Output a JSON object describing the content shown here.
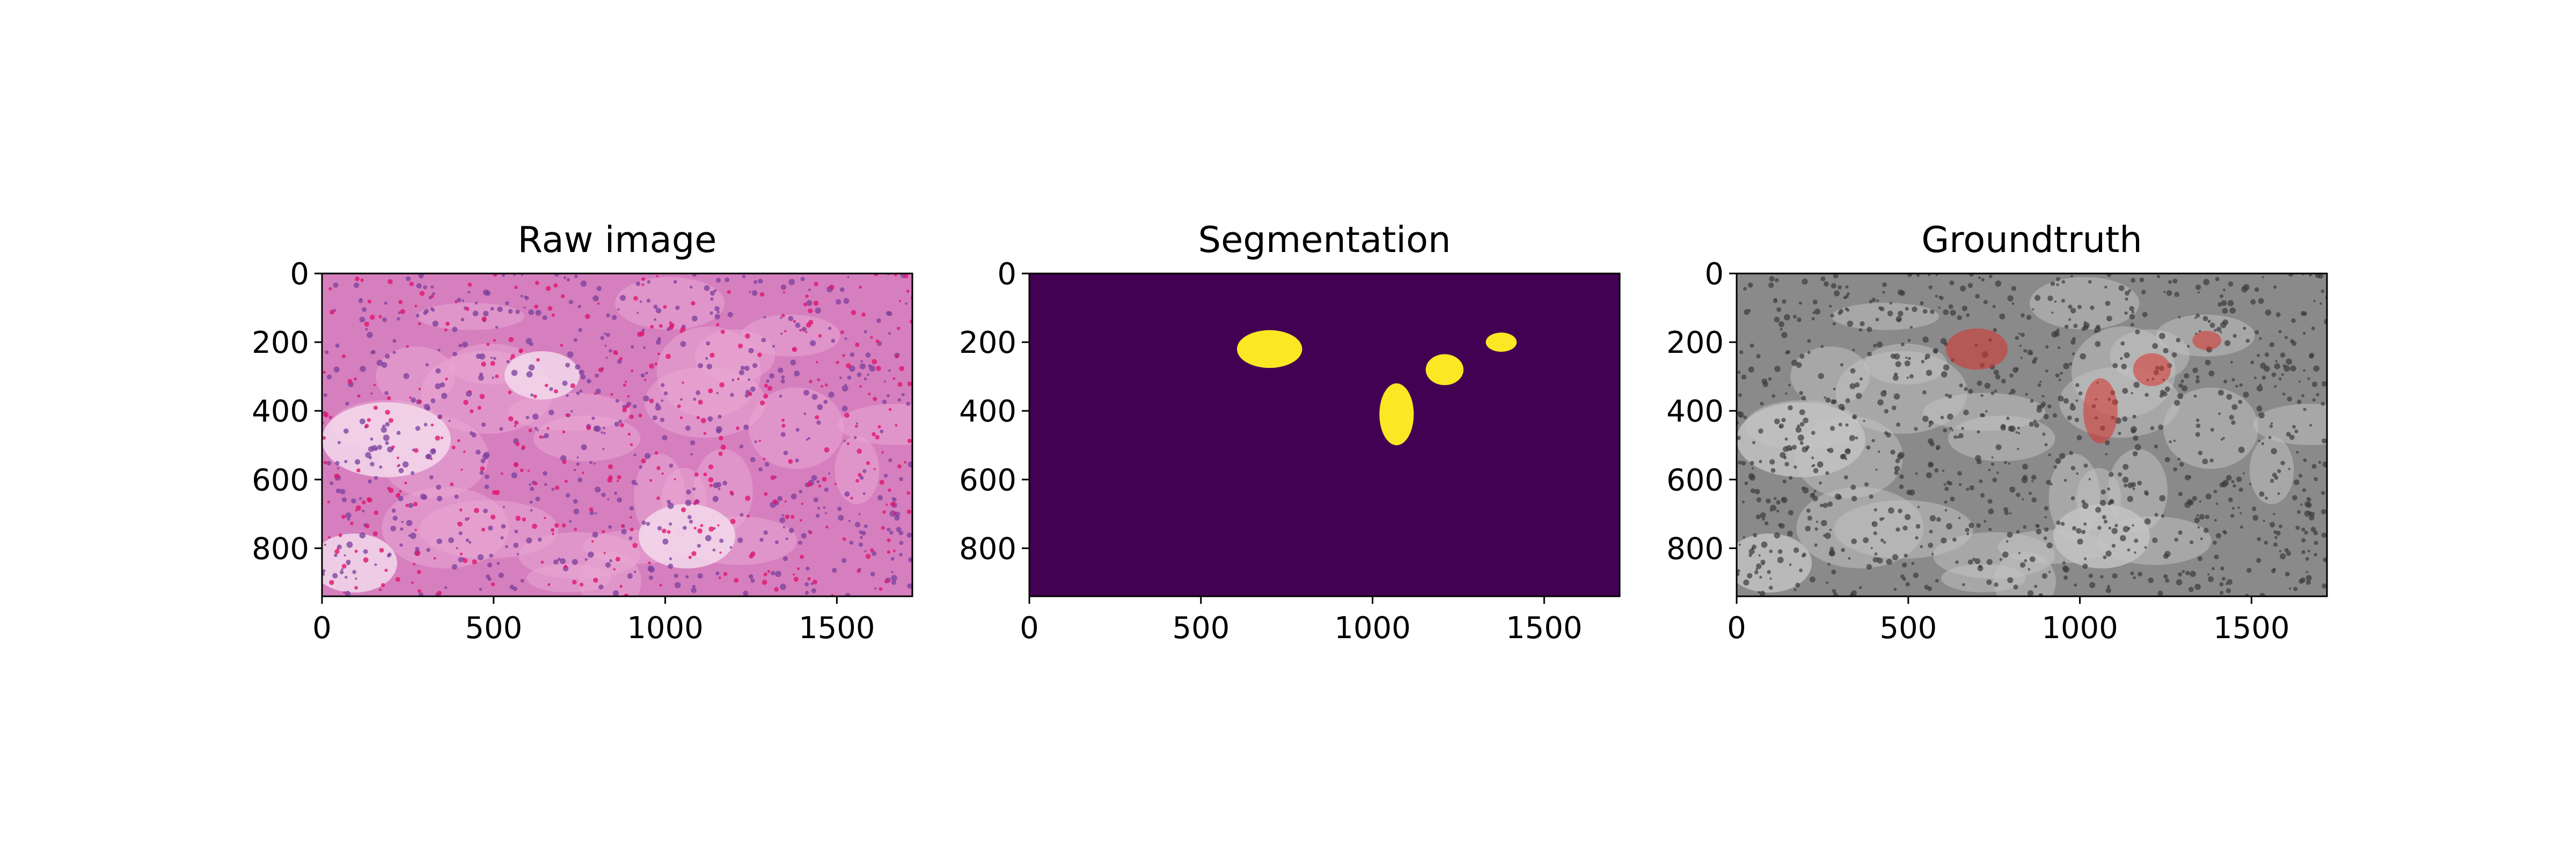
{
  "figure": {
    "background": "#ffffff",
    "panels": [
      {
        "id": "raw",
        "title": "Raw image",
        "kind": "he-stain-histology",
        "xlim": [
          0,
          1720
        ],
        "ylim": [
          940,
          0
        ],
        "xticks": [
          0,
          500,
          1000,
          1500
        ],
        "yticks": [
          0,
          200,
          400,
          600,
          800
        ],
        "colors": {
          "base": "#d67fbe",
          "stroma": "#e9a7d4",
          "nuclei": "#7a3f9c",
          "rbc": "#e0166e",
          "lumen": "#f2d9ec"
        }
      },
      {
        "id": "seg",
        "title": "Segmentation",
        "kind": "binary-mask",
        "xlim": [
          0,
          1720
        ],
        "ylim": [
          940,
          0
        ],
        "xticks": [
          0,
          500,
          1000,
          1500
        ],
        "yticks": [
          0,
          200,
          400,
          600,
          800
        ],
        "colors": {
          "background": "#440154",
          "foreground": "#fde725"
        },
        "regions": [
          {
            "cx": 700,
            "cy": 220,
            "rx": 95,
            "ry": 55
          },
          {
            "cx": 1070,
            "cy": 410,
            "rx": 50,
            "ry": 90
          },
          {
            "cx": 1210,
            "cy": 280,
            "rx": 55,
            "ry": 45
          },
          {
            "cx": 1375,
            "cy": 200,
            "rx": 45,
            "ry": 28
          }
        ]
      },
      {
        "id": "gt",
        "title": "Groundtruth",
        "kind": "grayscale-with-red-overlay",
        "xlim": [
          0,
          1720
        ],
        "ylim": [
          940,
          0
        ],
        "xticks": [
          0,
          500,
          1000,
          1500
        ],
        "yticks": [
          0,
          200,
          400,
          600,
          800
        ],
        "colors": {
          "gray": "#8a8a8a",
          "dark": "#3c3c3c",
          "light": "#c4c4c4",
          "overlay": "#d9322e"
        },
        "regions": [
          {
            "cx": 700,
            "cy": 220,
            "rx": 90,
            "ry": 60
          },
          {
            "cx": 1060,
            "cy": 400,
            "rx": 50,
            "ry": 95
          },
          {
            "cx": 1210,
            "cy": 280,
            "rx": 55,
            "ry": 48
          },
          {
            "cx": 1370,
            "cy": 195,
            "rx": 42,
            "ry": 28
          }
        ]
      }
    ]
  }
}
